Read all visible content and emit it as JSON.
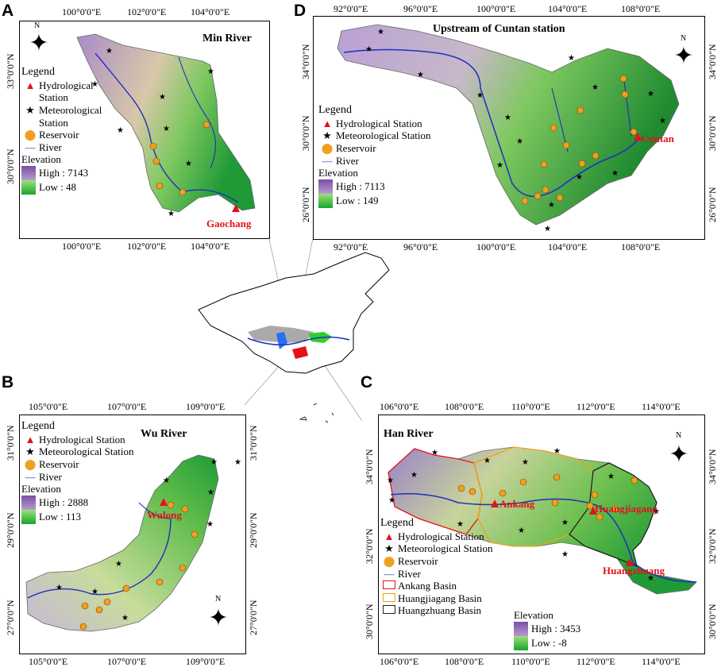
{
  "panels": {
    "A": {
      "label": "A",
      "title": "Min River",
      "xticks": [
        "100°0'0\"E",
        "102°0'0\"E",
        "104°0'0\"E"
      ],
      "yticks": [
        "33°0'0\"N",
        "30°0'0\"N"
      ],
      "legend": {
        "heading": "Legend",
        "hydro_line1": "Hydrological",
        "hydro_line2": "Station",
        "met_line1": "Meteorological",
        "met_line2": "Station",
        "reservoir": "Reservoir",
        "river": "River",
        "elevation": "Elevation",
        "high": "High : 7143",
        "low": "Low : 48"
      },
      "station": "Gaochang"
    },
    "D": {
      "label": "D",
      "title": "Upstream of Cuntan station",
      "xticks": [
        "92°0'0\"E",
        "96°0'0\"E",
        "100°0'0\"E",
        "104°0'0\"E",
        "108°0'0\"E"
      ],
      "yticks": [
        "34°0'0\"N",
        "30°0'0\"N",
        "26°0'0\"N"
      ],
      "legend": {
        "heading": "Legend",
        "hydro": "Hydrological Station",
        "met": "Meteorological Station",
        "reservoir": "Reservoir",
        "river": "River",
        "elevation": "Elevation",
        "high": "High : 7113",
        "low": "Low : 149"
      },
      "station": "Cuntan"
    },
    "B": {
      "label": "B",
      "title": "Wu River",
      "xticks": [
        "105°0'0\"E",
        "107°0'0\"E",
        "109°0'0\"E"
      ],
      "yticks": [
        "31°0'0\"N",
        "29°0'0\"N",
        "27°0'0\"N"
      ],
      "legend": {
        "heading": "Legend",
        "hydro": "Hydrological Station",
        "met": "Meteorological Station",
        "reservoir": "Reservoir",
        "river": "River",
        "elevation": "Elevation",
        "high": "High : 2888",
        "low": "Low : 113"
      },
      "station": "Wulong"
    },
    "C": {
      "label": "C",
      "title": "Han River",
      "xticks": [
        "106°0'0\"E",
        "108°0'0\"E",
        "110°0'0\"E",
        "112°0'0\"E",
        "114°0'0\"E"
      ],
      "yticks": [
        "34°0'0\"N",
        "32°0'0\"N",
        "30°0'0\"N"
      ],
      "legend": {
        "heading": "Legend",
        "hydro": "Hydrological Station",
        "met": "Meteorological Station",
        "reservoir": "Reservoir",
        "river": "River",
        "ankang": "Ankang Basin",
        "huangjiagang": "Huangjiagang Basin",
        "huangzhuang": "Huangzhuang Basin",
        "elevation": "Elevation",
        "high": "High : 3453",
        "low": "Low : -8"
      },
      "stations": [
        "Ankang",
        "Huangjiagang",
        "Huangzhuang"
      ]
    }
  },
  "north": "N",
  "colors": {
    "river": "#1f2fbf",
    "station": "#e3121a",
    "reservoir": "#f0a020",
    "ankang_border": "#e3121a",
    "huangjiagang_border": "#f0a020",
    "huangzhuang_border": "#222222",
    "highland": "#a98cc9",
    "lowland": "#1f9a36"
  }
}
